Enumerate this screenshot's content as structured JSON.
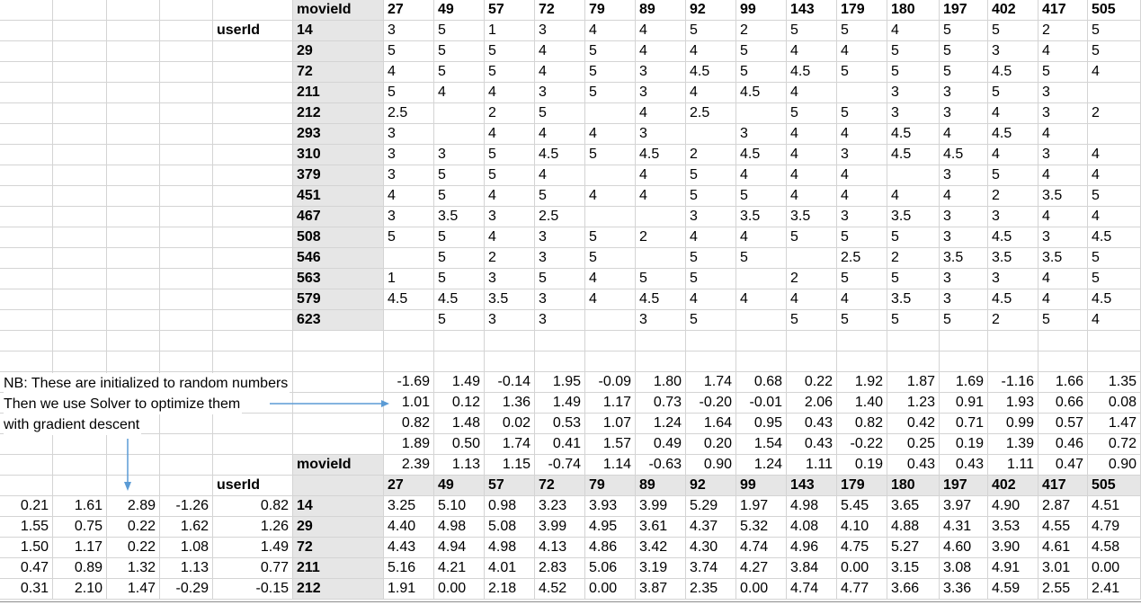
{
  "spreadsheet": {
    "labels": {
      "movieId": "movieId",
      "userId": "userId"
    },
    "notes": [
      "NB: These are initialized to random numbers",
      "Then we use Solver to optimize them",
      "with gradient descent"
    ],
    "movie_ids": [
      "27",
      "49",
      "57",
      "72",
      "79",
      "89",
      "92",
      "99",
      "143",
      "179",
      "180",
      "197",
      "402",
      "417",
      "505"
    ],
    "user_ids": [
      "14",
      "29",
      "72",
      "211",
      "212",
      "293",
      "310",
      "379",
      "451",
      "467",
      "508",
      "546",
      "563",
      "579",
      "623"
    ],
    "ratings": [
      [
        "3",
        "5",
        "1",
        "3",
        "4",
        "4",
        "5",
        "2",
        "5",
        "5",
        "4",
        "5",
        "5",
        "2",
        "5"
      ],
      [
        "5",
        "5",
        "5",
        "4",
        "5",
        "4",
        "4",
        "5",
        "4",
        "4",
        "5",
        "5",
        "3",
        "4",
        "5"
      ],
      [
        "4",
        "5",
        "5",
        "4",
        "5",
        "3",
        "4.5",
        "5",
        "4.5",
        "5",
        "5",
        "5",
        "4.5",
        "5",
        "4"
      ],
      [
        "5",
        "4",
        "4",
        "3",
        "5",
        "3",
        "4",
        "4.5",
        "4",
        "",
        "3",
        "3",
        "5",
        "3",
        ""
      ],
      [
        "2.5",
        "",
        "2",
        "5",
        "",
        "4",
        "2.5",
        "",
        "5",
        "5",
        "3",
        "3",
        "4",
        "3",
        "2"
      ],
      [
        "3",
        "",
        "4",
        "4",
        "4",
        "3",
        "",
        "3",
        "4",
        "4",
        "4.5",
        "4",
        "4.5",
        "4",
        ""
      ],
      [
        "3",
        "3",
        "5",
        "4.5",
        "5",
        "4.5",
        "2",
        "4.5",
        "4",
        "3",
        "4.5",
        "4.5",
        "4",
        "3",
        "4"
      ],
      [
        "3",
        "5",
        "5",
        "4",
        "",
        "4",
        "5",
        "4",
        "4",
        "4",
        "",
        "3",
        "5",
        "4",
        "4"
      ],
      [
        "4",
        "5",
        "4",
        "5",
        "4",
        "4",
        "5",
        "5",
        "4",
        "4",
        "4",
        "4",
        "2",
        "3.5",
        "5"
      ],
      [
        "3",
        "3.5",
        "3",
        "2.5",
        "",
        "",
        "3",
        "3.5",
        "3.5",
        "3",
        "3.5",
        "3",
        "3",
        "4",
        "4"
      ],
      [
        "5",
        "5",
        "4",
        "3",
        "5",
        "2",
        "4",
        "4",
        "5",
        "5",
        "5",
        "3",
        "4.5",
        "3",
        "4.5"
      ],
      [
        "",
        "5",
        "2",
        "3",
        "5",
        "",
        "5",
        "5",
        "",
        "2.5",
        "2",
        "3.5",
        "3.5",
        "3.5",
        "5"
      ],
      [
        "1",
        "5",
        "3",
        "5",
        "4",
        "5",
        "5",
        "",
        "2",
        "5",
        "5",
        "3",
        "3",
        "4",
        "5"
      ],
      [
        "4.5",
        "4.5",
        "3.5",
        "3",
        "4",
        "4.5",
        "4",
        "4",
        "4",
        "4",
        "3.5",
        "3",
        "4.5",
        "4",
        "4.5"
      ],
      [
        "",
        "5",
        "3",
        "3",
        "",
        "3",
        "5",
        "",
        "5",
        "5",
        "5",
        "5",
        "2",
        "5",
        "4"
      ]
    ],
    "movie_factors": [
      [
        "-1.69",
        "1.49",
        "-0.14",
        "1.95",
        "-0.09",
        "1.80",
        "1.74",
        "0.68",
        "0.22",
        "1.92",
        "1.87",
        "1.69",
        "-1.16",
        "1.66",
        "1.35"
      ],
      [
        "1.01",
        "0.12",
        "1.36",
        "1.49",
        "1.17",
        "0.73",
        "-0.20",
        "-0.01",
        "2.06",
        "1.40",
        "1.23",
        "0.91",
        "1.93",
        "0.66",
        "0.08"
      ],
      [
        "0.82",
        "1.48",
        "0.02",
        "0.53",
        "1.07",
        "1.24",
        "1.64",
        "0.95",
        "0.43",
        "0.82",
        "0.42",
        "0.71",
        "0.99",
        "0.57",
        "1.47"
      ],
      [
        "1.89",
        "0.50",
        "1.74",
        "0.41",
        "1.57",
        "0.49",
        "0.20",
        "1.54",
        "0.43",
        "-0.22",
        "0.25",
        "0.19",
        "1.39",
        "0.46",
        "0.72"
      ],
      [
        "2.39",
        "1.13",
        "1.15",
        "-0.74",
        "1.14",
        "-0.63",
        "0.90",
        "1.24",
        "1.11",
        "0.19",
        "0.43",
        "0.43",
        "1.11",
        "0.47",
        "0.90"
      ]
    ],
    "user_factor_rows": [
      {
        "f": [
          "0.21",
          "1.61",
          "2.89",
          "-1.26",
          "0.82"
        ],
        "uid": "14"
      },
      {
        "f": [
          "1.55",
          "0.75",
          "0.22",
          "1.62",
          "1.26"
        ],
        "uid": "29"
      },
      {
        "f": [
          "1.50",
          "1.17",
          "0.22",
          "1.08",
          "1.49"
        ],
        "uid": "72"
      },
      {
        "f": [
          "0.47",
          "0.89",
          "1.32",
          "1.13",
          "0.77"
        ],
        "uid": "211"
      },
      {
        "f": [
          "0.31",
          "2.10",
          "1.47",
          "-0.29",
          "-0.15"
        ],
        "uid": "212"
      }
    ],
    "predictions": [
      [
        "3.25",
        "5.10",
        "0.98",
        "3.23",
        "3.93",
        "3.99",
        "5.29",
        "1.97",
        "4.98",
        "5.45",
        "3.65",
        "3.97",
        "4.90",
        "2.87",
        "4.51"
      ],
      [
        "4.40",
        "4.98",
        "5.08",
        "3.99",
        "4.95",
        "3.61",
        "4.37",
        "5.32",
        "4.08",
        "4.10",
        "4.88",
        "4.31",
        "3.53",
        "4.55",
        "4.79"
      ],
      [
        "4.43",
        "4.94",
        "4.98",
        "4.13",
        "4.86",
        "3.42",
        "4.30",
        "4.74",
        "4.96",
        "4.75",
        "5.27",
        "4.60",
        "3.90",
        "4.61",
        "4.58"
      ],
      [
        "5.16",
        "4.21",
        "4.01",
        "2.83",
        "5.06",
        "3.19",
        "3.74",
        "4.27",
        "3.84",
        "0.00",
        "3.15",
        "3.08",
        "4.91",
        "3.01",
        "0.00"
      ],
      [
        "1.91",
        "0.00",
        "2.18",
        "4.52",
        "0.00",
        "3.87",
        "2.35",
        "0.00",
        "4.74",
        "4.77",
        "3.66",
        "3.36",
        "4.59",
        "2.55",
        "2.41"
      ]
    ],
    "accent_color": "#5b9bd5"
  }
}
